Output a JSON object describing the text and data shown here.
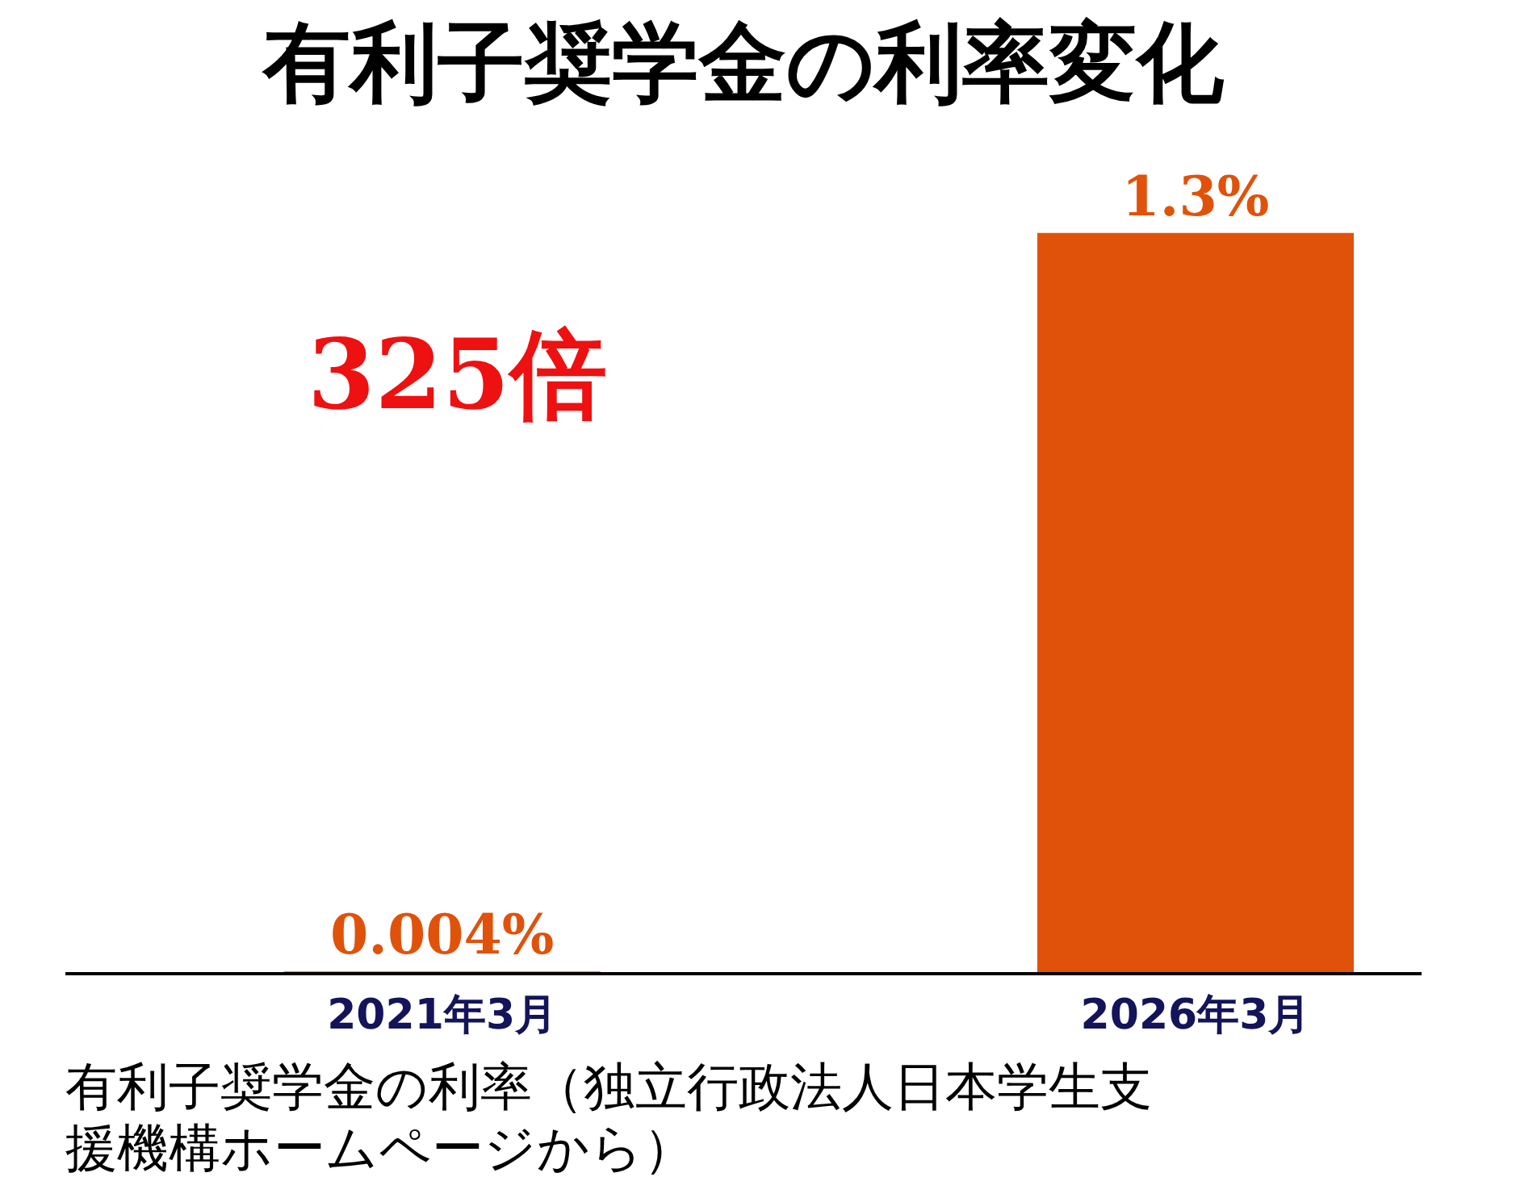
{
  "chart_data": {
    "type": "bar",
    "title": "有利子奨学金の利率変化",
    "categories": [
      "2021年3月",
      "2026年3月"
    ],
    "values": [
      0.004,
      1.3
    ],
    "color": "#e0520a",
    "tick_labels": "x",
    "grid": false,
    "value_labels": [
      "0.004%",
      "1.3%"
    ],
    "annotations": [
      "325倍",
      "有利子奨学金の利率（独立行政法人日本学生支援機構ホームページから）"
    ]
  }
}
